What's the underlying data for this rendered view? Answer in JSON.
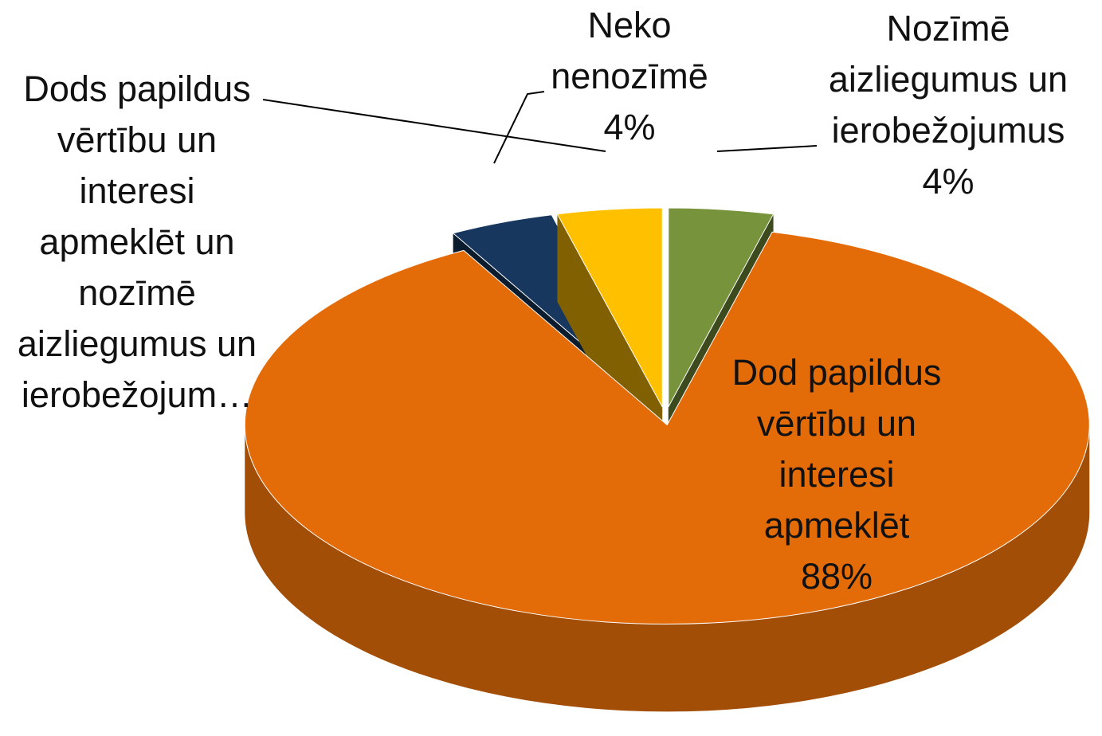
{
  "chart_data": {
    "type": "pie",
    "categories": [
      "Nozīmē aizliegumus un ierobežojumus",
      "Dod papildus vērtību un interesi apmeklēt",
      "Dods papildus vērtību un interesi apmeklēt un nozīmē aizliegumus un ierobežojum…",
      "Neko nenozīmē"
    ],
    "values": [
      4,
      88,
      4,
      4
    ],
    "value_labels": [
      "4%",
      "88%",
      null,
      "4%"
    ],
    "colors": [
      "#77933c",
      "#e36c09",
      "#17375e",
      "#ffc000"
    ]
  }
}
